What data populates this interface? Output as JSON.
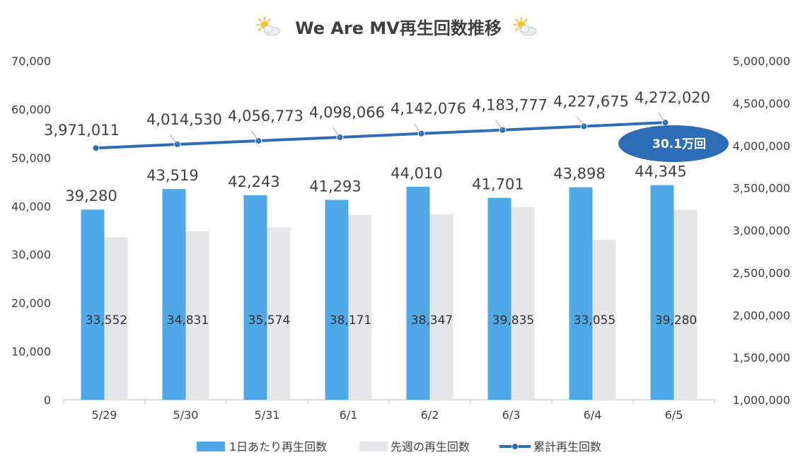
{
  "chart_data": {
    "type": "bar",
    "title": "We Are MV再生回数推移",
    "categories": [
      "5/29",
      "5/30",
      "5/31",
      "6/1",
      "6/2",
      "6/3",
      "6/4",
      "6/5"
    ],
    "series": [
      {
        "name": "1日あたり再生回数",
        "type": "bar",
        "axis": "left",
        "color": "#4fa9e6",
        "values": [
          39280,
          43519,
          42243,
          41293,
          44010,
          41701,
          43898,
          44345
        ],
        "labels": [
          "39,280",
          "43,519",
          "42,243",
          "41,293",
          "44,010",
          "41,701",
          "43,898",
          "44,345"
        ]
      },
      {
        "name": "先週の再生回数",
        "type": "bar",
        "axis": "left",
        "color": "#e4e6e7",
        "values": [
          33552,
          34831,
          35574,
          38171,
          38347,
          39835,
          33055,
          39280
        ],
        "labels": [
          "33,552",
          "34,831",
          "35,574",
          "38,171",
          "38,347",
          "39,835",
          "33,055",
          "39,280"
        ]
      },
      {
        "name": "累計再生回数",
        "type": "line",
        "axis": "right",
        "color": "#2d6db5",
        "values": [
          3971011,
          4014530,
          4056773,
          4098066,
          4142076,
          4183777,
          4227675,
          4272020
        ],
        "labels": [
          "3,971,011",
          "4,014,530",
          "4,056,773",
          "4,098,066",
          "4,142,076",
          "4,183,777",
          "4,227,675",
          "4,272,020"
        ]
      }
    ],
    "y_left": {
      "ylim": [
        0,
        70000
      ],
      "ticks": [
        "0",
        "10,000",
        "20,000",
        "30,000",
        "40,000",
        "50,000",
        "60,000",
        "70,000"
      ]
    },
    "y_right": {
      "ylim": [
        1000000,
        5000000
      ],
      "ticks": [
        "1,000,000",
        "1,500,000",
        "2,000,000",
        "2,500,000",
        "3,000,000",
        "3,500,000",
        "4,000,000",
        "4,500,000",
        "5,000,000"
      ]
    },
    "annotation": {
      "text": "30.1万回",
      "color": "#2d6db5"
    },
    "legend": "bottom",
    "grid": false
  }
}
